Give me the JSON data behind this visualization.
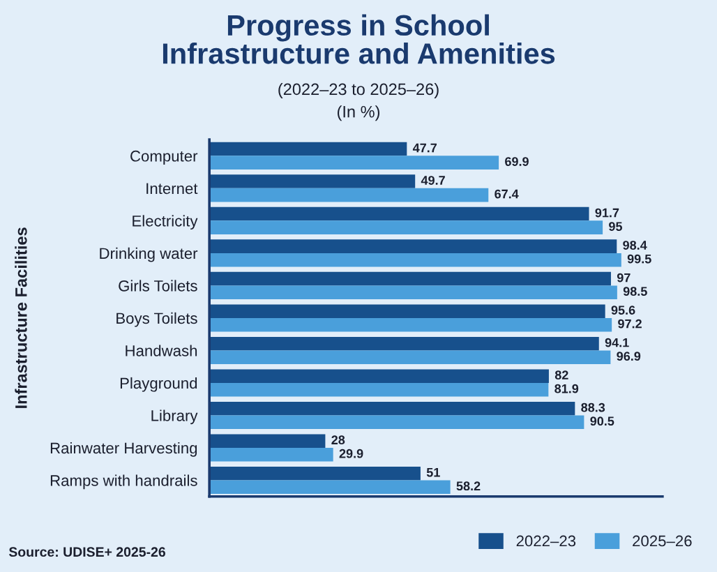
{
  "chart_data": {
    "type": "bar",
    "orientation": "horizontal",
    "title": "Progress in School\nInfrastructure and Amenities",
    "subtitle": "(2022–23 to 2025–26)\n(In %)",
    "ylabel": "Infrastructure Facilities",
    "categories": [
      "Computer",
      "Internet",
      "Electricity",
      "Drinking water",
      "Girls Toilets",
      "Boys Toilets",
      "Handwash",
      "Playground",
      "Library",
      "Rainwater Harvesting",
      "Ramps with handrails"
    ],
    "series": [
      {
        "name": "2022–23",
        "color": "#17508c",
        "values": [
          47.7,
          49.7,
          91.7,
          98.4,
          97,
          95.6,
          94.1,
          82,
          88.3,
          28,
          51
        ]
      },
      {
        "name": "2025–26",
        "color": "#4a9fdb",
        "values": [
          69.9,
          67.4,
          95,
          99.5,
          98.5,
          97.2,
          96.9,
          81.9,
          90.5,
          29.9,
          58.2
        ]
      }
    ],
    "data_labels": true,
    "tick_labels": "y",
    "grid": false,
    "legend": "bottom right",
    "annotations": [
      "Source: UDISE+ 2025-26"
    ]
  }
}
